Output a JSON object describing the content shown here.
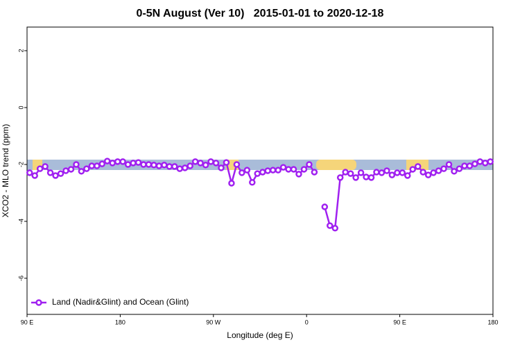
{
  "chart_data": {
    "type": "line",
    "title": "0-5N August (Ver 10)   2015-01-01 to 2020-12-18",
    "x_label": "Longitude (deg E)",
    "y_label": "XCO2 - MLO trend (ppm)",
    "xlim": [
      90,
      540
    ],
    "ylim": [
      -7.27,
      2.83
    ],
    "xticks": [
      {
        "value": 90,
        "label": "90 E"
      },
      180,
      {
        "value": 270,
        "label": "90 W"
      },
      {
        "value": 360,
        "label": "0"
      },
      {
        "value": 450,
        "label": "90 E"
      },
      {
        "value": 540,
        "label": "180"
      }
    ],
    "yticks": [
      2,
      0,
      -2,
      -4,
      -6
    ],
    "x": [
      92.5,
      97.5,
      102.5,
      107.5,
      112.5,
      117.5,
      122.5,
      127.5,
      132.5,
      137.5,
      142.5,
      147.5,
      152.5,
      157.5,
      162.5,
      167.5,
      172.5,
      177.5,
      182.5,
      187.5,
      192.5,
      197.5,
      202.5,
      207.5,
      212.5,
      217.5,
      222.5,
      227.5,
      232.5,
      237.5,
      242.5,
      247.5,
      252.5,
      257.5,
      262.5,
      267.5,
      272.5,
      277.5,
      282.5,
      287.5,
      292.5,
      297.5,
      302.5,
      307.5,
      312.5,
      317.5,
      322.5,
      327.5,
      332.5,
      337.5,
      342.5,
      347.5,
      352.5,
      357.5,
      362.5,
      367.5,
      372.5,
      377.5,
      382.5,
      387.5,
      392.5,
      397.5,
      402.5,
      407.5,
      412.5,
      417.5,
      422.5,
      427.5,
      432.5,
      437.5,
      442.5,
      447.5,
      452.5,
      457.5,
      462.5,
      467.5,
      472.5,
      477.5,
      482.5,
      487.5,
      492.5,
      497.5,
      502.5,
      507.5,
      512.5,
      517.5,
      522.5,
      527.5,
      532.5,
      537.5
    ],
    "series": [
      {
        "name": "Land (Nadir&Glint) and Ocean (Glint)",
        "color": "#a020f0",
        "values": [
          -2.29,
          -2.39,
          -2.15,
          -2.07,
          -2.29,
          -2.39,
          -2.32,
          -2.22,
          -2.17,
          -2.0,
          -2.24,
          -2.15,
          -2.05,
          -2.05,
          -1.98,
          -1.88,
          -1.95,
          -1.9,
          -1.9,
          -2.0,
          -1.95,
          -1.93,
          -2.0,
          -2.0,
          -2.02,
          -2.05,
          -2.02,
          -2.07,
          -2.07,
          -2.15,
          -2.12,
          -2.05,
          -1.9,
          -1.95,
          -2.02,
          -1.9,
          -1.95,
          -2.12,
          -1.93,
          -2.66,
          -2.0,
          -2.29,
          -2.2,
          -2.63,
          -2.32,
          -2.27,
          -2.22,
          -2.2,
          -2.2,
          -2.1,
          -2.17,
          -2.17,
          -2.34,
          -2.17,
          -2.0,
          -2.27,
          null,
          -3.49,
          -4.15,
          -4.24,
          -2.46,
          -2.27,
          -2.32,
          -2.46,
          -2.29,
          -2.44,
          -2.46,
          -2.27,
          -2.29,
          -2.22,
          -2.37,
          -2.29,
          -2.29,
          -2.39,
          -2.17,
          -2.07,
          -2.27,
          -2.37,
          -2.29,
          -2.22,
          -2.15,
          -2.0,
          -2.24,
          -2.15,
          -2.05,
          -2.05,
          -1.98,
          -1.9,
          -1.95,
          -1.9
        ]
      }
    ],
    "legend": "bottom-left"
  }
}
